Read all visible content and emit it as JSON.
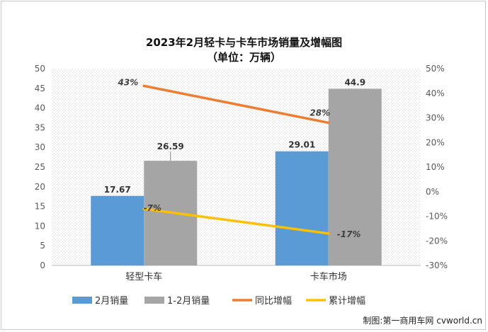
{
  "chart_data": {
    "type": "bar",
    "title": "2023年2月轻卡与卡车市场销量及增幅图",
    "subtitle": "（单位：万辆）",
    "categories": [
      "轻型卡车",
      "卡车市场"
    ],
    "series": [
      {
        "name": "2月销量",
        "type": "bar",
        "axis": "left",
        "color": "#5b9bd5",
        "values": [
          17.67,
          29.01
        ],
        "labels": [
          "17.67",
          "29.01"
        ]
      },
      {
        "name": "1-2月销量",
        "type": "bar",
        "axis": "left",
        "color": "#a5a5a5",
        "values": [
          26.59,
          44.9
        ],
        "labels": [
          "26.59",
          "44.9"
        ]
      },
      {
        "name": "同比增幅",
        "type": "line",
        "axis": "right",
        "color": "#ed7d31",
        "values": [
          43,
          28
        ],
        "labels": [
          "43%",
          "28%"
        ]
      },
      {
        "name": "累计增幅",
        "type": "line",
        "axis": "right",
        "color": "#ffc000",
        "values": [
          -7,
          -17
        ],
        "labels": [
          "-7%",
          "-17%"
        ]
      }
    ],
    "y_left": {
      "min": 0,
      "max": 50,
      "ticks": [
        "0",
        "5",
        "10",
        "15",
        "20",
        "25",
        "30",
        "35",
        "40",
        "45",
        "50"
      ]
    },
    "y_right": {
      "min": -30,
      "max": 50,
      "ticks": [
        "-30%",
        "-20%",
        "-10%",
        "0%",
        "10%",
        "20%",
        "30%",
        "40%",
        "50%"
      ]
    },
    "legend_position": "bottom",
    "grid": false
  },
  "credit": "制图:第一商用车网 cvworld.cn"
}
